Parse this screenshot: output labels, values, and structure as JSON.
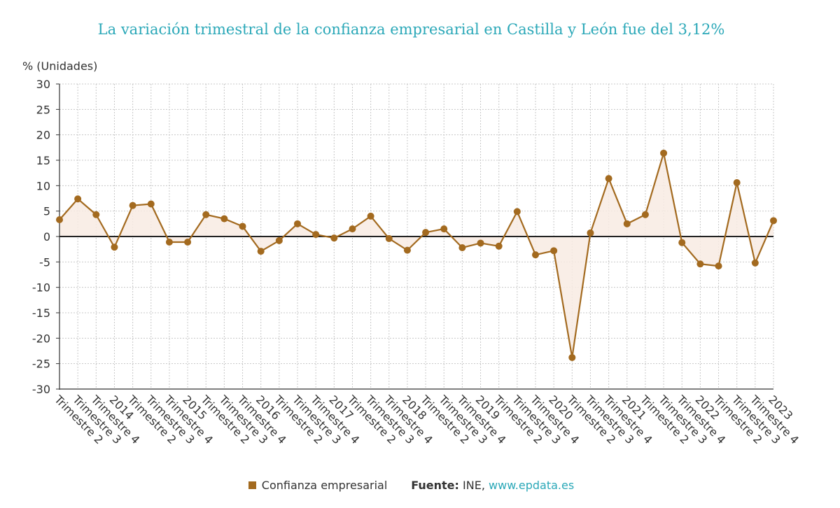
{
  "colors": {
    "title": "#2ba8b8",
    "series": "#a36a1f",
    "area_fill": "#f8ebe3",
    "grid": "#c8c8c8",
    "link": "#2ba8b8"
  },
  "legend": {
    "series_label": "Confianza empresarial",
    "source_label": "Fuente:",
    "source_name": "INE,",
    "source_link": "www.epdata.es"
  },
  "chart_data": {
    "type": "area",
    "title": "La variación trimestral de la confianza empresarial en Castilla y León fue del 3,12%",
    "ylabel": "% (Unidades)",
    "ylim": [
      -30,
      30
    ],
    "yticks": [
      30,
      25,
      20,
      15,
      10,
      5,
      0,
      -5,
      -10,
      -15,
      -20,
      -25,
      -30
    ],
    "grid": true,
    "zero_line": true,
    "legend_position": "bottom",
    "categories": [
      "Trimestre 2",
      "Trimestre 3",
      "Trimestre 4",
      "2014",
      "Trimestre 2",
      "Trimestre 3",
      "Trimestre 4",
      "2015",
      "Trimestre 2",
      "Trimestre 3",
      "Trimestre 4",
      "2016",
      "Trimestre 2",
      "Trimestre 3",
      "Trimestre 4",
      "2017",
      "Trimestre 2",
      "Trimestre 3",
      "Trimestre 4",
      "2018",
      "Trimestre 2",
      "Trimestre 3",
      "Trimestre 4",
      "2019",
      "Trimestre 2",
      "Trimestre 3",
      "Trimestre 4",
      "2020",
      "Trimestre 2",
      "Trimestre 3",
      "Trimestre 4",
      "2021",
      "Trimestre 2",
      "Trimestre 3",
      "Trimestre 4",
      "2022",
      "Trimestre 2",
      "Trimestre 3",
      "Trimestre 4",
      "2023"
    ],
    "series": [
      {
        "name": "Confianza empresarial",
        "values": [
          3.3,
          7.4,
          4.3,
          -2.1,
          6.1,
          6.4,
          -1.1,
          -1.1,
          4.3,
          3.5,
          2.0,
          -2.9,
          -0.8,
          2.5,
          0.4,
          -0.3,
          1.5,
          4.0,
          -0.4,
          -2.7,
          0.8,
          1.5,
          -2.2,
          -1.3,
          -1.9,
          4.9,
          -3.6,
          -2.8,
          -23.8,
          0.7,
          11.4,
          2.5,
          4.3,
          16.4,
          -1.2,
          -5.4,
          -5.8,
          10.6,
          -5.2,
          3.12
        ]
      }
    ]
  }
}
